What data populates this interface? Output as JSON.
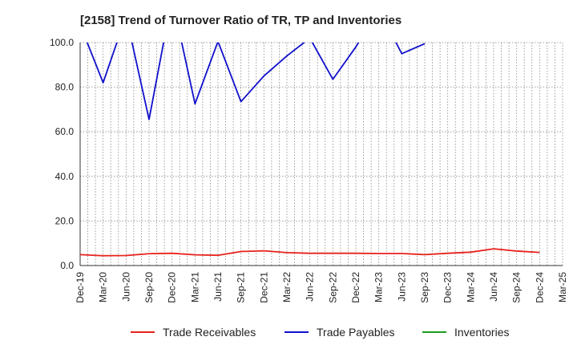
{
  "chart_data": {
    "type": "line",
    "title": "[2158]  Trend of Turnover Ratio of TR, TP and Inventories",
    "xlabel": "",
    "ylabel": "",
    "ylim": [
      0,
      100
    ],
    "ytick_labels": [
      "0.0",
      "20.0",
      "40.0",
      "60.0",
      "80.0",
      "100.0"
    ],
    "x_tick_labels": [
      "Dec-19",
      "Mar-20",
      "Jun-20",
      "Sep-20",
      "Dec-20",
      "Mar-21",
      "Jun-21",
      "Sep-21",
      "Dec-21",
      "Mar-22",
      "Jun-22",
      "Sep-22",
      "Dec-22",
      "Mar-23",
      "Jun-23",
      "Sep-23",
      "Dec-23",
      "Mar-24",
      "Jun-24",
      "Sep-24",
      "Dec-24",
      "Mar-25"
    ],
    "grid": true,
    "legend_position": "bottom",
    "series": [
      {
        "name": "Trade Receivables",
        "color": "#e8211c",
        "values": [
          4.9,
          4.4,
          4.5,
          5.3,
          5.5,
          4.8,
          4.6,
          6.3,
          6.6,
          5.8,
          5.5,
          5.5,
          5.5,
          5.4,
          5.4,
          4.9,
          5.5,
          6.0,
          7.5,
          6.5,
          5.9,
          null
        ]
      },
      {
        "name": "Trade Payables",
        "color": "#1010cc",
        "values": [
          108,
          82,
          112,
          65.5,
          120,
          72.5,
          100.5,
          73.5,
          85,
          94,
          102,
          83.5,
          98,
          115,
          95,
          99.5,
          null,
          null,
          null,
          null,
          null,
          null
        ]
      },
      {
        "name": "Inventories",
        "color": "#1a9c1a",
        "values": []
      }
    ]
  }
}
